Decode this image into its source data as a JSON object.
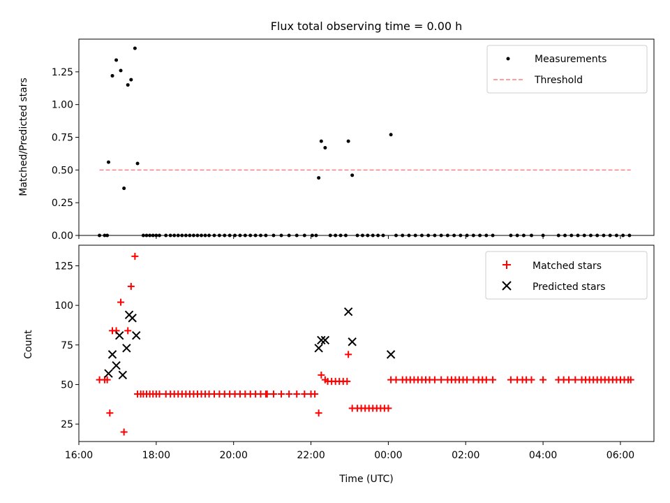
{
  "figure_title": "Flux total observing time = 0.00 h",
  "colors": {
    "measurements": "#000000",
    "threshold": "#ff7f7f",
    "matched": "#ff0000",
    "predicted": "#000000"
  },
  "chart_data": [
    {
      "type": "scatter",
      "title": "Flux total observing time = 0.00 h",
      "xlabel": "",
      "ylabel": "Matched/Predicted stars",
      "xlim": [
        "16:00",
        "06:52"
      ],
      "ylim": [
        0,
        1.5
      ],
      "yticks": [
        "0.00",
        "0.25",
        "0.50",
        "0.75",
        "1.00",
        "1.25"
      ],
      "xticks": [
        "16:00",
        "18:00",
        "20:00",
        "22:00",
        "00:00",
        "02:00",
        "04:00",
        "06:00"
      ],
      "show_xtick_labels": false,
      "legend": {
        "placement": "top-right",
        "entries": [
          "Measurements",
          "Threshold"
        ]
      },
      "threshold": {
        "name": "Threshold",
        "value": 0.5,
        "x_start": "16:32",
        "x_end": "06:16"
      },
      "series": [
        {
          "name": "Measurements",
          "points": [
            [
              "16:32",
              0
            ],
            [
              "16:40",
              0
            ],
            [
              "16:44",
              0
            ],
            [
              "16:46",
              0.56
            ],
            [
              "16:52",
              1.22
            ],
            [
              "16:58",
              1.34
            ],
            [
              "17:05",
              1.26
            ],
            [
              "17:10",
              0.36
            ],
            [
              "17:16",
              1.15
            ],
            [
              "17:21",
              1.19
            ],
            [
              "17:27",
              1.43
            ],
            [
              "17:31",
              0.55
            ],
            [
              "17:40",
              0
            ],
            [
              "17:45",
              0
            ],
            [
              "17:50",
              0
            ],
            [
              "17:55",
              0
            ],
            [
              "18:00",
              0
            ],
            [
              "18:05",
              0
            ],
            [
              "18:15",
              0
            ],
            [
              "18:22",
              0
            ],
            [
              "18:28",
              0
            ],
            [
              "18:34",
              0
            ],
            [
              "18:40",
              0
            ],
            [
              "18:46",
              0
            ],
            [
              "18:52",
              0
            ],
            [
              "18:58",
              0
            ],
            [
              "19:04",
              0
            ],
            [
              "19:10",
              0
            ],
            [
              "19:16",
              0
            ],
            [
              "19:22",
              0
            ],
            [
              "19:30",
              0
            ],
            [
              "19:38",
              0
            ],
            [
              "19:46",
              0
            ],
            [
              "19:54",
              0
            ],
            [
              "20:02",
              0
            ],
            [
              "20:10",
              0
            ],
            [
              "20:18",
              0
            ],
            [
              "20:26",
              0
            ],
            [
              "20:34",
              0
            ],
            [
              "20:42",
              0
            ],
            [
              "20:50",
              0
            ],
            [
              "21:02",
              0
            ],
            [
              "21:14",
              0
            ],
            [
              "21:26",
              0
            ],
            [
              "21:38",
              0
            ],
            [
              "21:50",
              0
            ],
            [
              "22:02",
              0
            ],
            [
              "22:08",
              0
            ],
            [
              "22:12",
              0.44
            ],
            [
              "22:16",
              0.72
            ],
            [
              "22:22",
              0.67
            ],
            [
              "22:30",
              0
            ],
            [
              "22:38",
              0
            ],
            [
              "22:46",
              0
            ],
            [
              "22:54",
              0
            ],
            [
              "22:58",
              0.72
            ],
            [
              "23:04",
              0.46
            ],
            [
              "23:12",
              0
            ],
            [
              "23:20",
              0
            ],
            [
              "23:28",
              0
            ],
            [
              "23:36",
              0
            ],
            [
              "23:44",
              0
            ],
            [
              "23:52",
              0
            ],
            [
              "00:04",
              0.77
            ],
            [
              "00:12",
              0
            ],
            [
              "00:22",
              0
            ],
            [
              "00:32",
              0
            ],
            [
              "00:42",
              0
            ],
            [
              "00:52",
              0
            ],
            [
              "01:02",
              0
            ],
            [
              "01:12",
              0
            ],
            [
              "01:22",
              0
            ],
            [
              "01:32",
              0
            ],
            [
              "01:42",
              0
            ],
            [
              "01:52",
              0
            ],
            [
              "02:02",
              0
            ],
            [
              "02:12",
              0
            ],
            [
              "02:22",
              0
            ],
            [
              "02:32",
              0
            ],
            [
              "02:42",
              0
            ],
            [
              "03:10",
              0
            ],
            [
              "03:20",
              0
            ],
            [
              "03:30",
              0
            ],
            [
              "03:42",
              0
            ],
            [
              "04:00",
              0
            ],
            [
              "04:24",
              0
            ],
            [
              "04:34",
              0
            ],
            [
              "04:44",
              0
            ],
            [
              "04:54",
              0
            ],
            [
              "05:04",
              0
            ],
            [
              "05:14",
              0
            ],
            [
              "05:24",
              0
            ],
            [
              "05:34",
              0
            ],
            [
              "05:44",
              0
            ],
            [
              "05:54",
              0
            ],
            [
              "06:04",
              0
            ],
            [
              "06:14",
              0
            ]
          ]
        }
      ]
    },
    {
      "type": "scatter",
      "title": "",
      "xlabel": "Time (UTC)",
      "ylabel": "Count",
      "xlim": [
        "16:00",
        "06:52"
      ],
      "ylim": [
        14,
        138
      ],
      "yticks": [
        "25",
        "50",
        "75",
        "100",
        "125"
      ],
      "xticks": [
        "16:00",
        "18:00",
        "20:00",
        "22:00",
        "00:00",
        "02:00",
        "04:00",
        "06:00"
      ],
      "legend": {
        "placement": "top-right",
        "entries": [
          "Matched stars",
          "Predicted stars"
        ]
      },
      "series": [
        {
          "name": "Matched stars",
          "points": [
            [
              "16:32",
              53
            ],
            [
              "16:40",
              53
            ],
            [
              "16:44",
              53
            ],
            [
              "16:48",
              32
            ],
            [
              "16:52",
              84
            ],
            [
              "16:58",
              84
            ],
            [
              "17:05",
              102
            ],
            [
              "17:10",
              20
            ],
            [
              "17:16",
              84
            ],
            [
              "17:21",
              112
            ],
            [
              "17:27",
              131
            ],
            [
              "17:31",
              44
            ],
            [
              "17:36",
              44
            ],
            [
              "17:40",
              44
            ],
            [
              "17:45",
              44
            ],
            [
              "17:50",
              44
            ],
            [
              "17:55",
              44
            ],
            [
              "18:00",
              44
            ],
            [
              "18:05",
              44
            ],
            [
              "18:15",
              44
            ],
            [
              "18:22",
              44
            ],
            [
              "18:28",
              44
            ],
            [
              "18:34",
              44
            ],
            [
              "18:40",
              44
            ],
            [
              "18:46",
              44
            ],
            [
              "18:52",
              44
            ],
            [
              "18:58",
              44
            ],
            [
              "19:04",
              44
            ],
            [
              "19:10",
              44
            ],
            [
              "19:16",
              44
            ],
            [
              "19:22",
              44
            ],
            [
              "19:30",
              44
            ],
            [
              "19:38",
              44
            ],
            [
              "19:46",
              44
            ],
            [
              "19:54",
              44
            ],
            [
              "20:02",
              44
            ],
            [
              "20:10",
              44
            ],
            [
              "20:18",
              44
            ],
            [
              "20:26",
              44
            ],
            [
              "20:34",
              44
            ],
            [
              "20:42",
              44
            ],
            [
              "20:50",
              44
            ],
            [
              "20:52",
              44
            ],
            [
              "21:02",
              44
            ],
            [
              "21:14",
              44
            ],
            [
              "21:26",
              44
            ],
            [
              "21:38",
              44
            ],
            [
              "21:50",
              44
            ],
            [
              "22:00",
              44
            ],
            [
              "22:06",
              44
            ],
            [
              "22:12",
              32
            ],
            [
              "22:16",
              56
            ],
            [
              "22:22",
              53
            ],
            [
              "22:26",
              52
            ],
            [
              "22:32",
              52
            ],
            [
              "22:38",
              52
            ],
            [
              "22:44",
              52
            ],
            [
              "22:50",
              52
            ],
            [
              "22:56",
              52
            ],
            [
              "22:58",
              69
            ],
            [
              "23:04",
              35
            ],
            [
              "23:12",
              35
            ],
            [
              "23:18",
              35
            ],
            [
              "23:24",
              35
            ],
            [
              "23:30",
              35
            ],
            [
              "23:36",
              35
            ],
            [
              "23:42",
              35
            ],
            [
              "23:48",
              35
            ],
            [
              "23:54",
              35
            ],
            [
              "00:00",
              35
            ],
            [
              "00:04",
              53
            ],
            [
              "00:12",
              53
            ],
            [
              "00:22",
              53
            ],
            [
              "00:28",
              53
            ],
            [
              "00:34",
              53
            ],
            [
              "00:40",
              53
            ],
            [
              "00:46",
              53
            ],
            [
              "00:52",
              53
            ],
            [
              "00:58",
              53
            ],
            [
              "01:04",
              53
            ],
            [
              "01:12",
              53
            ],
            [
              "01:22",
              53
            ],
            [
              "01:32",
              53
            ],
            [
              "01:38",
              53
            ],
            [
              "01:44",
              53
            ],
            [
              "01:50",
              53
            ],
            [
              "01:56",
              53
            ],
            [
              "02:02",
              53
            ],
            [
              "02:12",
              53
            ],
            [
              "02:20",
              53
            ],
            [
              "02:26",
              53
            ],
            [
              "02:32",
              53
            ],
            [
              "02:42",
              53
            ],
            [
              "03:10",
              53
            ],
            [
              "03:20",
              53
            ],
            [
              "03:28",
              53
            ],
            [
              "03:34",
              53
            ],
            [
              "03:42",
              53
            ],
            [
              "04:00",
              53
            ],
            [
              "04:24",
              53
            ],
            [
              "04:32",
              53
            ],
            [
              "04:40",
              53
            ],
            [
              "04:50",
              53
            ],
            [
              "05:00",
              53
            ],
            [
              "05:06",
              53
            ],
            [
              "05:12",
              53
            ],
            [
              "05:18",
              53
            ],
            [
              "05:24",
              53
            ],
            [
              "05:30",
              53
            ],
            [
              "05:36",
              53
            ],
            [
              "05:42",
              53
            ],
            [
              "05:48",
              53
            ],
            [
              "05:54",
              53
            ],
            [
              "06:00",
              53
            ],
            [
              "06:06",
              53
            ],
            [
              "06:12",
              53
            ],
            [
              "06:16",
              53
            ]
          ]
        },
        {
          "name": "Predicted stars",
          "points": [
            [
              "16:46",
              57
            ],
            [
              "16:52",
              69
            ],
            [
              "16:58",
              62
            ],
            [
              "17:03",
              81
            ],
            [
              "17:08",
              56
            ],
            [
              "17:14",
              73
            ],
            [
              "17:18",
              94
            ],
            [
              "17:23",
              92
            ],
            [
              "17:29",
              81
            ],
            [
              "22:12",
              73
            ],
            [
              "22:16",
              78
            ],
            [
              "22:22",
              78
            ],
            [
              "22:58",
              96
            ],
            [
              "23:04",
              77
            ],
            [
              "00:04",
              69
            ]
          ]
        }
      ]
    }
  ]
}
